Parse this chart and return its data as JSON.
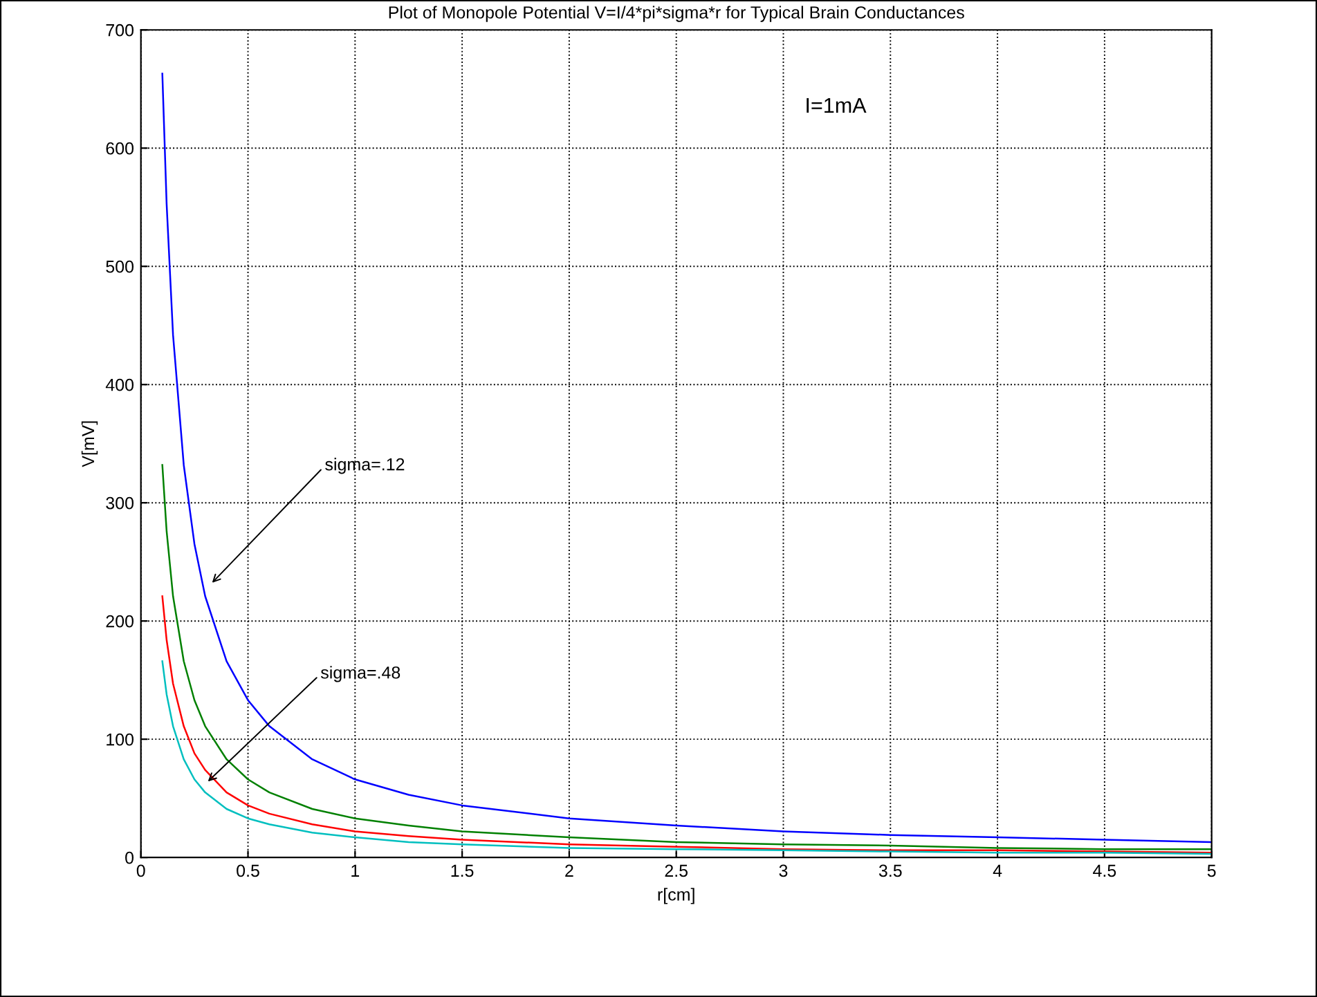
{
  "chart_data": {
    "type": "line",
    "title": "Plot of Monopole Potential V=I/4*pi*sigma*r for Typical Brain Conductances",
    "xlabel": "r[cm]",
    "ylabel": "V[mV]",
    "x": [
      0.1,
      0.12,
      0.15,
      0.2,
      0.25,
      0.3,
      0.4,
      0.5,
      0.6,
      0.8,
      1,
      1.25,
      1.5,
      2,
      2.5,
      3,
      3.5,
      4,
      4.5,
      5
    ],
    "series": [
      {
        "color": "#0000ff",
        "values": [
          663,
          553,
          442,
          332,
          265,
          221,
          166,
          133,
          111,
          83,
          66,
          53,
          44,
          33,
          27,
          22,
          19,
          17,
          15,
          13
        ]
      },
      {
        "color": "#008000",
        "values": [
          332,
          276,
          221,
          166,
          133,
          111,
          83,
          66,
          55,
          41,
          33,
          27,
          22,
          17,
          13,
          11,
          10,
          8,
          7,
          7
        ]
      },
      {
        "color": "#ff0000",
        "values": [
          221,
          184,
          147,
          111,
          88,
          74,
          55,
          44,
          37,
          28,
          22,
          18,
          15,
          11,
          9,
          7,
          6,
          6,
          5,
          4
        ]
      },
      {
        "color": "#00bfbf",
        "values": [
          166,
          138,
          111,
          83,
          66,
          55,
          41,
          33,
          28,
          21,
          17,
          13,
          11,
          8,
          7,
          6,
          5,
          4,
          4,
          3
        ]
      }
    ],
    "xlim": [
      0,
      5
    ],
    "xticks": [
      0,
      0.5,
      1,
      1.5,
      2,
      2.5,
      3,
      3.5,
      4,
      4.5,
      5
    ],
    "ylim": [
      0,
      700
    ],
    "yticks": [
      0,
      100,
      200,
      300,
      400,
      500,
      600,
      700
    ],
    "grid": true,
    "line_style": "solid",
    "marker": "none",
    "annotations": [
      "I=1mA",
      {
        "text": "sigma=.12",
        "x": 0.32,
        "y": 230
      },
      {
        "text": "sigma=.48",
        "x": 0.3,
        "y": 62
      }
    ]
  }
}
